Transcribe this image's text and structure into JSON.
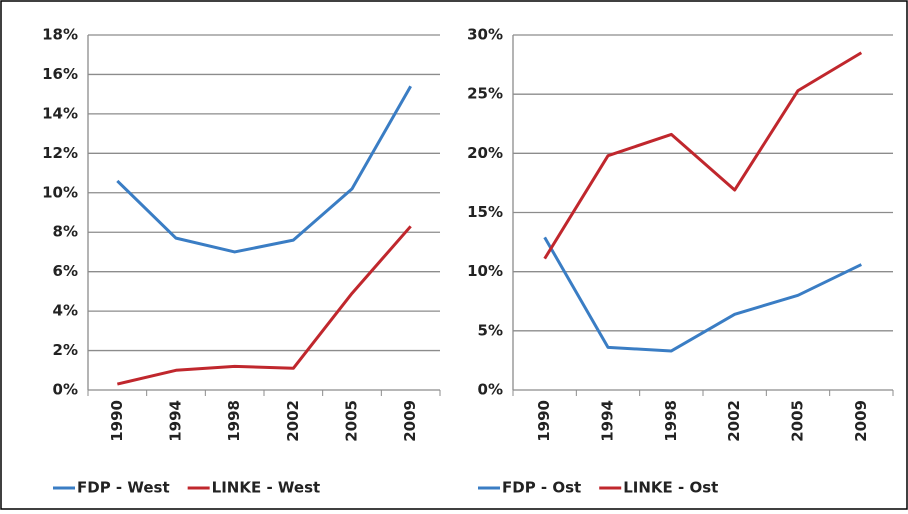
{
  "chart_data": [
    {
      "type": "line",
      "categories": [
        "1990",
        "1994",
        "1998",
        "2002",
        "2005",
        "2009"
      ],
      "series": [
        {
          "name": "FDP - West",
          "color": "#3a7dc4",
          "values": [
            10.6,
            7.7,
            7.0,
            7.6,
            10.2,
            15.4
          ]
        },
        {
          "name": "LINKE - West",
          "color": "#c0272d",
          "values": [
            0.3,
            1.0,
            1.2,
            1.1,
            4.9,
            8.3
          ]
        }
      ],
      "ylim": [
        0,
        18
      ],
      "yticks": [
        {
          "value": 0,
          "label": "0%"
        },
        {
          "value": 2,
          "label": "2%"
        },
        {
          "value": 4,
          "label": "4%"
        },
        {
          "value": 6,
          "label": "6%"
        },
        {
          "value": 8,
          "label": "8%"
        },
        {
          "value": 10,
          "label": "10%"
        },
        {
          "value": 12,
          "label": "12%"
        },
        {
          "value": 14,
          "label": "14%"
        },
        {
          "value": 16,
          "label": "16%"
        },
        {
          "value": 18,
          "label": "18%"
        }
      ],
      "grid": true,
      "legend": "bottom"
    },
    {
      "type": "line",
      "categories": [
        "1990",
        "1994",
        "1998",
        "2002",
        "2005",
        "2009"
      ],
      "series": [
        {
          "name": "FDP - Ost",
          "color": "#3a7dc4",
          "values": [
            12.9,
            3.6,
            3.3,
            6.4,
            8.0,
            10.6
          ]
        },
        {
          "name": "LINKE - Ost",
          "color": "#c0272d",
          "values": [
            11.1,
            19.8,
            21.6,
            16.9,
            25.3,
            28.5
          ]
        }
      ],
      "ylim": [
        0,
        30
      ],
      "yticks": [
        {
          "value": 0,
          "label": "0%"
        },
        {
          "value": 5,
          "label": "5%"
        },
        {
          "value": 10,
          "label": "10%"
        },
        {
          "value": 15,
          "label": "15%"
        },
        {
          "value": 20,
          "label": "20%"
        },
        {
          "value": 25,
          "label": "25%"
        },
        {
          "value": 30,
          "label": "30%"
        }
      ],
      "grid": true,
      "legend": "bottom"
    }
  ]
}
